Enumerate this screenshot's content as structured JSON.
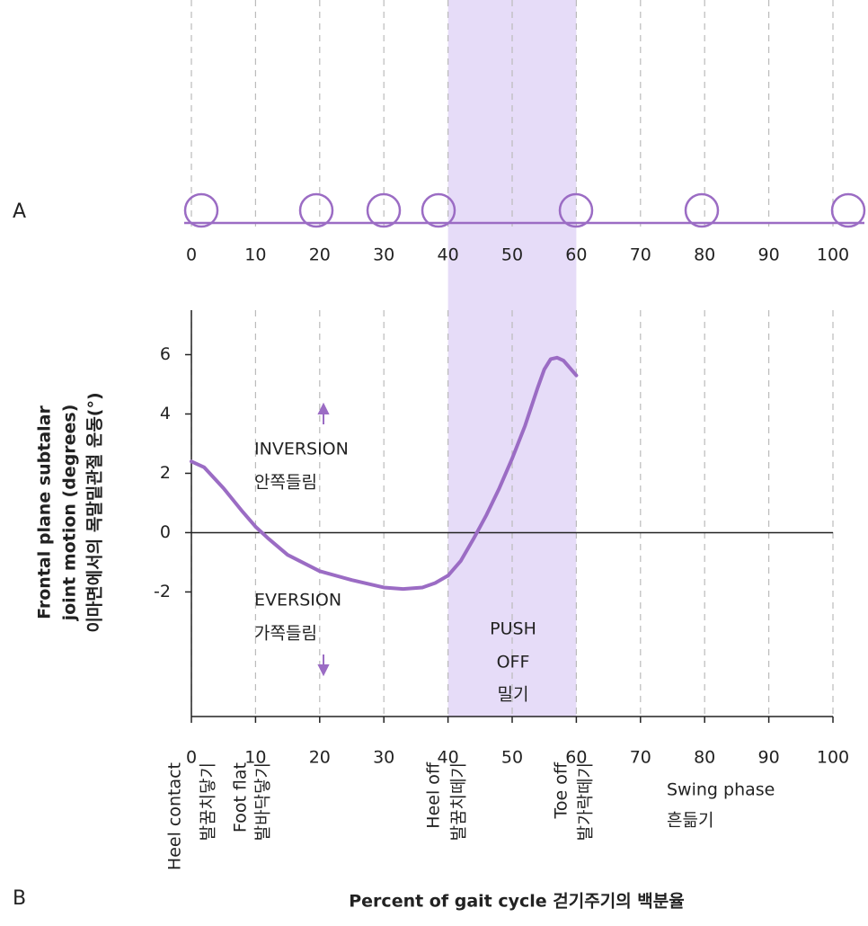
{
  "chart_data": {
    "type": "line",
    "panel_labels": [
      "A",
      "B"
    ],
    "ylabel": [
      "Frontal plane subtalar",
      "joint motion (degrees)",
      "이마면에서의 목말밑관절 운동(°)"
    ],
    "xlabel": "Percent of gait cycle 걷기주기의 백분율",
    "x": [
      0,
      2,
      5,
      8,
      10,
      12,
      15,
      20,
      25,
      30,
      33,
      36,
      38,
      40,
      42,
      44,
      46,
      48,
      50,
      52,
      54,
      55,
      56,
      57,
      58,
      60
    ],
    "values": [
      2.4,
      2.2,
      1.5,
      0.7,
      0.2,
      -0.2,
      -0.75,
      -1.3,
      -1.6,
      -1.85,
      -1.9,
      -1.85,
      -1.7,
      -1.45,
      -0.95,
      -0.2,
      0.6,
      1.5,
      2.5,
      3.6,
      4.9,
      5.5,
      5.85,
      5.9,
      5.8,
      5.3
    ],
    "color": "#9b6cc4",
    "xlim": [
      0,
      100
    ],
    "ylim": [
      -6.2,
      7.5
    ],
    "xticks": [
      0,
      10,
      20,
      30,
      40,
      50,
      60,
      70,
      80,
      90,
      100
    ],
    "yticks": [
      -2,
      0,
      2,
      4,
      6
    ],
    "grid": true,
    "highlight": [
      40,
      60
    ],
    "highlight_color": "#e6dcf8",
    "annotations": [
      [
        "INVERSION",
        "안쪽들림"
      ],
      [
        "EVERSION",
        "가쪽들림"
      ],
      [
        "PUSH",
        "OFF",
        "밀기"
      ]
    ],
    "gait_events": [
      [
        "Heel contact",
        "발꿈치닿기"
      ],
      [
        "Foot flat",
        "발바닥닿기"
      ],
      [
        "Heel off",
        "발꿈치떼기"
      ],
      [
        "Toe off",
        "발가락떼기"
      ],
      [
        "Swing phase",
        "흔듦기"
      ]
    ]
  }
}
